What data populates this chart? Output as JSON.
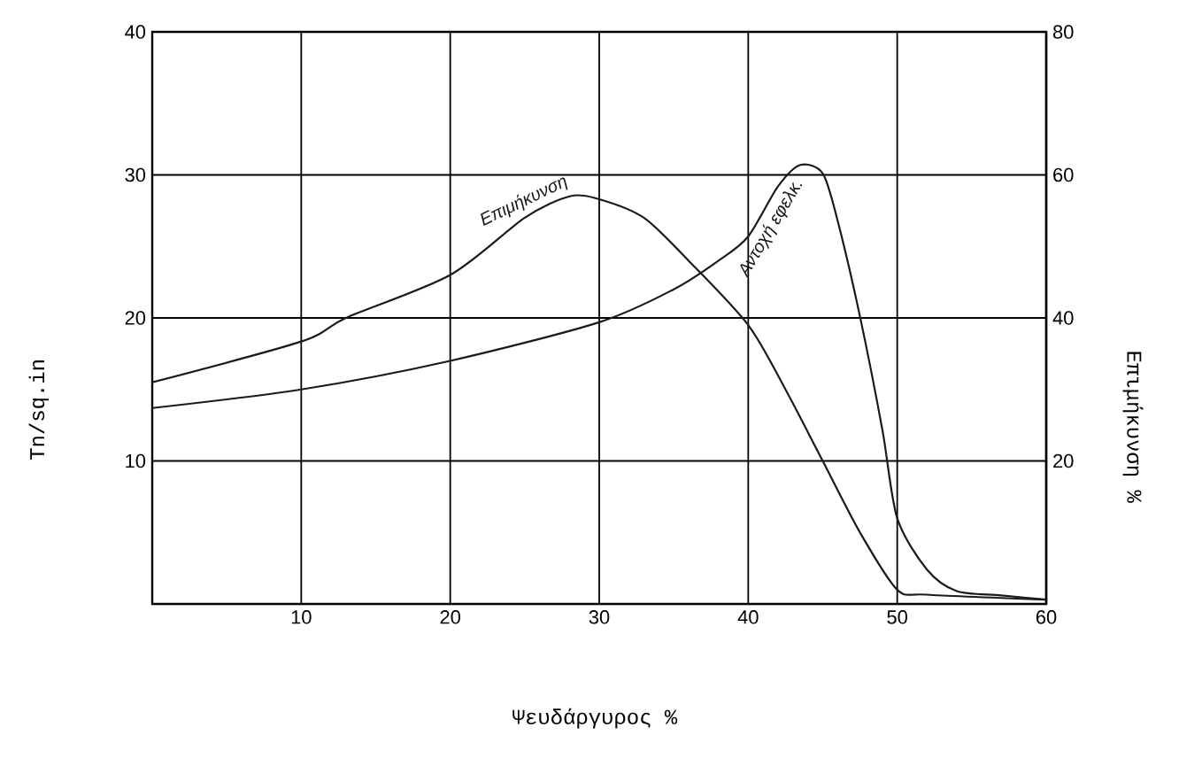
{
  "chart_data": {
    "type": "line",
    "xlabel": "Ψευδάργυρος %",
    "ylabel": "Tn/sq.in",
    "y2label": "Επιμήκυνση %",
    "xlim": [
      0,
      60
    ],
    "xticks": [
      10,
      20,
      30,
      40,
      50,
      60
    ],
    "ylim": [
      0,
      40
    ],
    "yticks": [
      10,
      20,
      30,
      40
    ],
    "y2lim": [
      0,
      80
    ],
    "y2ticks": [
      20,
      40,
      60,
      80
    ],
    "grid": true,
    "series": [
      {
        "name": "Επιμήκυνση",
        "color": "#1a1a1a",
        "axis": "y2",
        "x": [
          0,
          10,
          13,
          20,
          25,
          28,
          30,
          33,
          36,
          40,
          42.5,
          45,
          47.5,
          50,
          52,
          60
        ],
        "values": [
          31,
          36.7,
          40,
          46,
          54,
          57,
          56.6,
          54,
          48,
          39,
          30,
          20,
          10,
          2,
          1.3,
          0.6
        ]
      },
      {
        "name": "Αντοχή εφελκ.",
        "color": "#1a1a1a",
        "x": [
          0,
          10,
          20,
          30,
          35,
          38,
          40,
          42,
          43.5,
          45,
          46,
          47.5,
          49,
          50,
          52,
          54,
          57,
          60
        ],
        "values": [
          13.7,
          15,
          17,
          19.7,
          22,
          24,
          25.7,
          29.2,
          30.7,
          30.1,
          26.8,
          20.1,
          12.2,
          6,
          2.4,
          0.9,
          0.6,
          0.3
        ]
      }
    ]
  }
}
